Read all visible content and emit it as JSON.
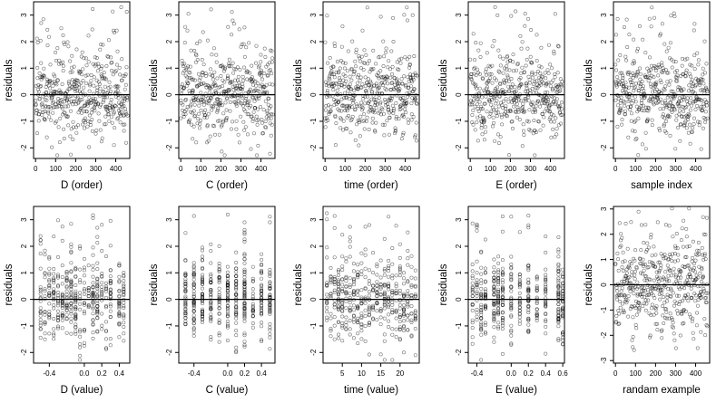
{
  "chart_data": [
    {
      "type": "scatter",
      "xlabel": "D (order)",
      "ylabel": "residuals",
      "xlim": [
        -10,
        470
      ],
      "ylim": [
        -2.4,
        3.5
      ],
      "xticks": [
        0,
        100,
        200,
        300,
        400
      ],
      "yticks": [
        -2,
        -1,
        0,
        1,
        2,
        3
      ],
      "xtick_labels": [
        "0",
        "100",
        "200",
        "300",
        "400"
      ],
      "points": {
        "kind": "index",
        "n": 460,
        "seed": 11,
        "spread": 0.8
      },
      "reference_line": 0
    },
    {
      "type": "scatter",
      "xlabel": "C (order)",
      "ylabel": "residuals",
      "xlim": [
        -10,
        470
      ],
      "ylim": [
        -2.4,
        3.5
      ],
      "xticks": [
        0,
        100,
        200,
        300,
        400
      ],
      "yticks": [
        -2,
        -1,
        0,
        1,
        2,
        3
      ],
      "xtick_labels": [
        "0",
        "100",
        "200",
        "300",
        "400"
      ],
      "points": {
        "kind": "index",
        "n": 460,
        "seed": 23,
        "spread": 0.8
      },
      "reference_line": 0
    },
    {
      "type": "scatter",
      "xlabel": "time (order)",
      "ylabel": "residuals",
      "xlim": [
        -10,
        470
      ],
      "ylim": [
        -2.4,
        3.5
      ],
      "xticks": [
        0,
        100,
        200,
        300,
        400
      ],
      "yticks": [
        -2,
        -1,
        0,
        1,
        2,
        3
      ],
      "xtick_labels": [
        "0",
        "100",
        "200",
        "300",
        "400"
      ],
      "points": {
        "kind": "index",
        "n": 460,
        "seed": 37,
        "spread": 0.8
      },
      "reference_line": 0
    },
    {
      "type": "scatter",
      "xlabel": "E (order)",
      "ylabel": "residuals",
      "xlim": [
        -10,
        470
      ],
      "ylim": [
        -2.4,
        3.5
      ],
      "xticks": [
        0,
        100,
        200,
        300,
        400
      ],
      "yticks": [
        -2,
        -1,
        0,
        1,
        2,
        3
      ],
      "xtick_labels": [
        "0",
        "100",
        "200",
        "300",
        "400"
      ],
      "points": {
        "kind": "index",
        "n": 460,
        "seed": 41,
        "spread": 0.8
      },
      "reference_line": 0
    },
    {
      "type": "scatter",
      "xlabel": "sample index",
      "ylabel": "residuals",
      "xlim": [
        -10,
        470
      ],
      "ylim": [
        -2.4,
        3.5
      ],
      "xticks": [
        0,
        100,
        200,
        300,
        400
      ],
      "yticks": [
        -2,
        -1,
        0,
        1,
        2,
        3
      ],
      "xtick_labels": [
        "0",
        "100",
        "200",
        "300",
        "400"
      ],
      "points": {
        "kind": "index",
        "n": 460,
        "seed": 53,
        "spread": 0.8
      },
      "reference_line": 0
    },
    {
      "type": "scatter",
      "xlabel": "D (value)",
      "ylabel": "residuals",
      "xlim": [
        -0.58,
        0.52
      ],
      "ylim": [
        -2.4,
        3.5
      ],
      "xticks": [
        -0.4,
        0,
        0.2,
        0.4
      ],
      "yticks": [
        -2,
        -1,
        0,
        1,
        2,
        3
      ],
      "xtick_labels": [
        "-0.4",
        "0.0",
        "0.2",
        "0.4"
      ],
      "points": {
        "kind": "values",
        "n": 440,
        "seed": 61,
        "spread": 0.8,
        "levels": [
          -0.5,
          -0.45,
          -0.4,
          -0.35,
          -0.3,
          -0.25,
          -0.2,
          -0.15,
          -0.1,
          -0.05,
          0,
          0.05,
          0.1,
          0.15,
          0.2,
          0.25,
          0.3,
          0.4,
          0.45
        ]
      },
      "reference_line": 0
    },
    {
      "type": "scatter",
      "xlabel": "C (value)",
      "ylabel": "residuals",
      "xlim": [
        -0.58,
        0.56
      ],
      "ylim": [
        -2.4,
        3.5
      ],
      "xticks": [
        -0.4,
        0,
        0.2,
        0.4
      ],
      "yticks": [
        -2,
        -1,
        0,
        1,
        2,
        3
      ],
      "xtick_labels": [
        "-0.4",
        "0.0",
        "0.2",
        "0.4"
      ],
      "points": {
        "kind": "values",
        "n": 440,
        "seed": 71,
        "spread": 0.75,
        "levels": [
          -0.5,
          -0.4,
          -0.3,
          -0.2,
          -0.1,
          0,
          0.1,
          0.2,
          0.3,
          0.4,
          0.5
        ]
      },
      "reference_line": 0
    },
    {
      "type": "scatter",
      "xlabel": "time (value)",
      "ylabel": "residuals",
      "xlim": [
        0,
        25
      ],
      "ylim": [
        -2.4,
        3.5
      ],
      "xticks": [
        5,
        10,
        15,
        20
      ],
      "yticks": [
        -2,
        -1,
        0,
        1,
        2,
        3
      ],
      "xtick_labels": [
        "5",
        "10",
        "15",
        "20"
      ],
      "points": {
        "kind": "values",
        "n": 440,
        "seed": 83,
        "spread": 0.8,
        "levels": [
          1,
          2,
          3,
          4,
          5,
          6,
          7,
          8,
          9,
          10,
          11,
          12,
          13,
          14,
          15,
          16,
          17,
          18,
          19,
          20,
          21,
          22,
          23,
          24
        ]
      },
      "reference_line": 0
    },
    {
      "type": "scatter",
      "xlabel": "E (value)",
      "ylabel": "residuals",
      "xlim": [
        -0.5,
        0.62
      ],
      "ylim": [
        -2.4,
        3.5
      ],
      "xticks": [
        -0.4,
        0,
        0.2,
        0.4,
        0.6
      ],
      "yticks": [
        -2,
        -1,
        0,
        1,
        2,
        3
      ],
      "xtick_labels": [
        "-0.4",
        "0.0",
        "0.2",
        "0.4",
        "0.6"
      ],
      "points": {
        "kind": "values",
        "n": 440,
        "seed": 97,
        "spread": 0.8,
        "levels": [
          -0.45,
          -0.4,
          -0.35,
          -0.3,
          -0.2,
          -0.15,
          -0.1,
          0,
          0.1,
          0.2,
          0.3,
          0.4,
          0.55,
          0.6
        ]
      },
      "reference_line": 0
    },
    {
      "type": "scatter",
      "xlabel": "randam example",
      "ylabel": "residuals",
      "xlim": [
        -10,
        470
      ],
      "ylim": [
        -3.1,
        3.1
      ],
      "xticks": [
        0,
        100,
        200,
        300,
        400
      ],
      "yticks": [
        -3,
        -2,
        -1,
        0,
        1,
        2,
        3
      ],
      "xtick_labels": [
        "0",
        "100",
        "200",
        "300",
        "400"
      ],
      "points": {
        "kind": "index",
        "n": 460,
        "seed": 109,
        "spread": 1.0
      },
      "reference_line": 0
    }
  ]
}
